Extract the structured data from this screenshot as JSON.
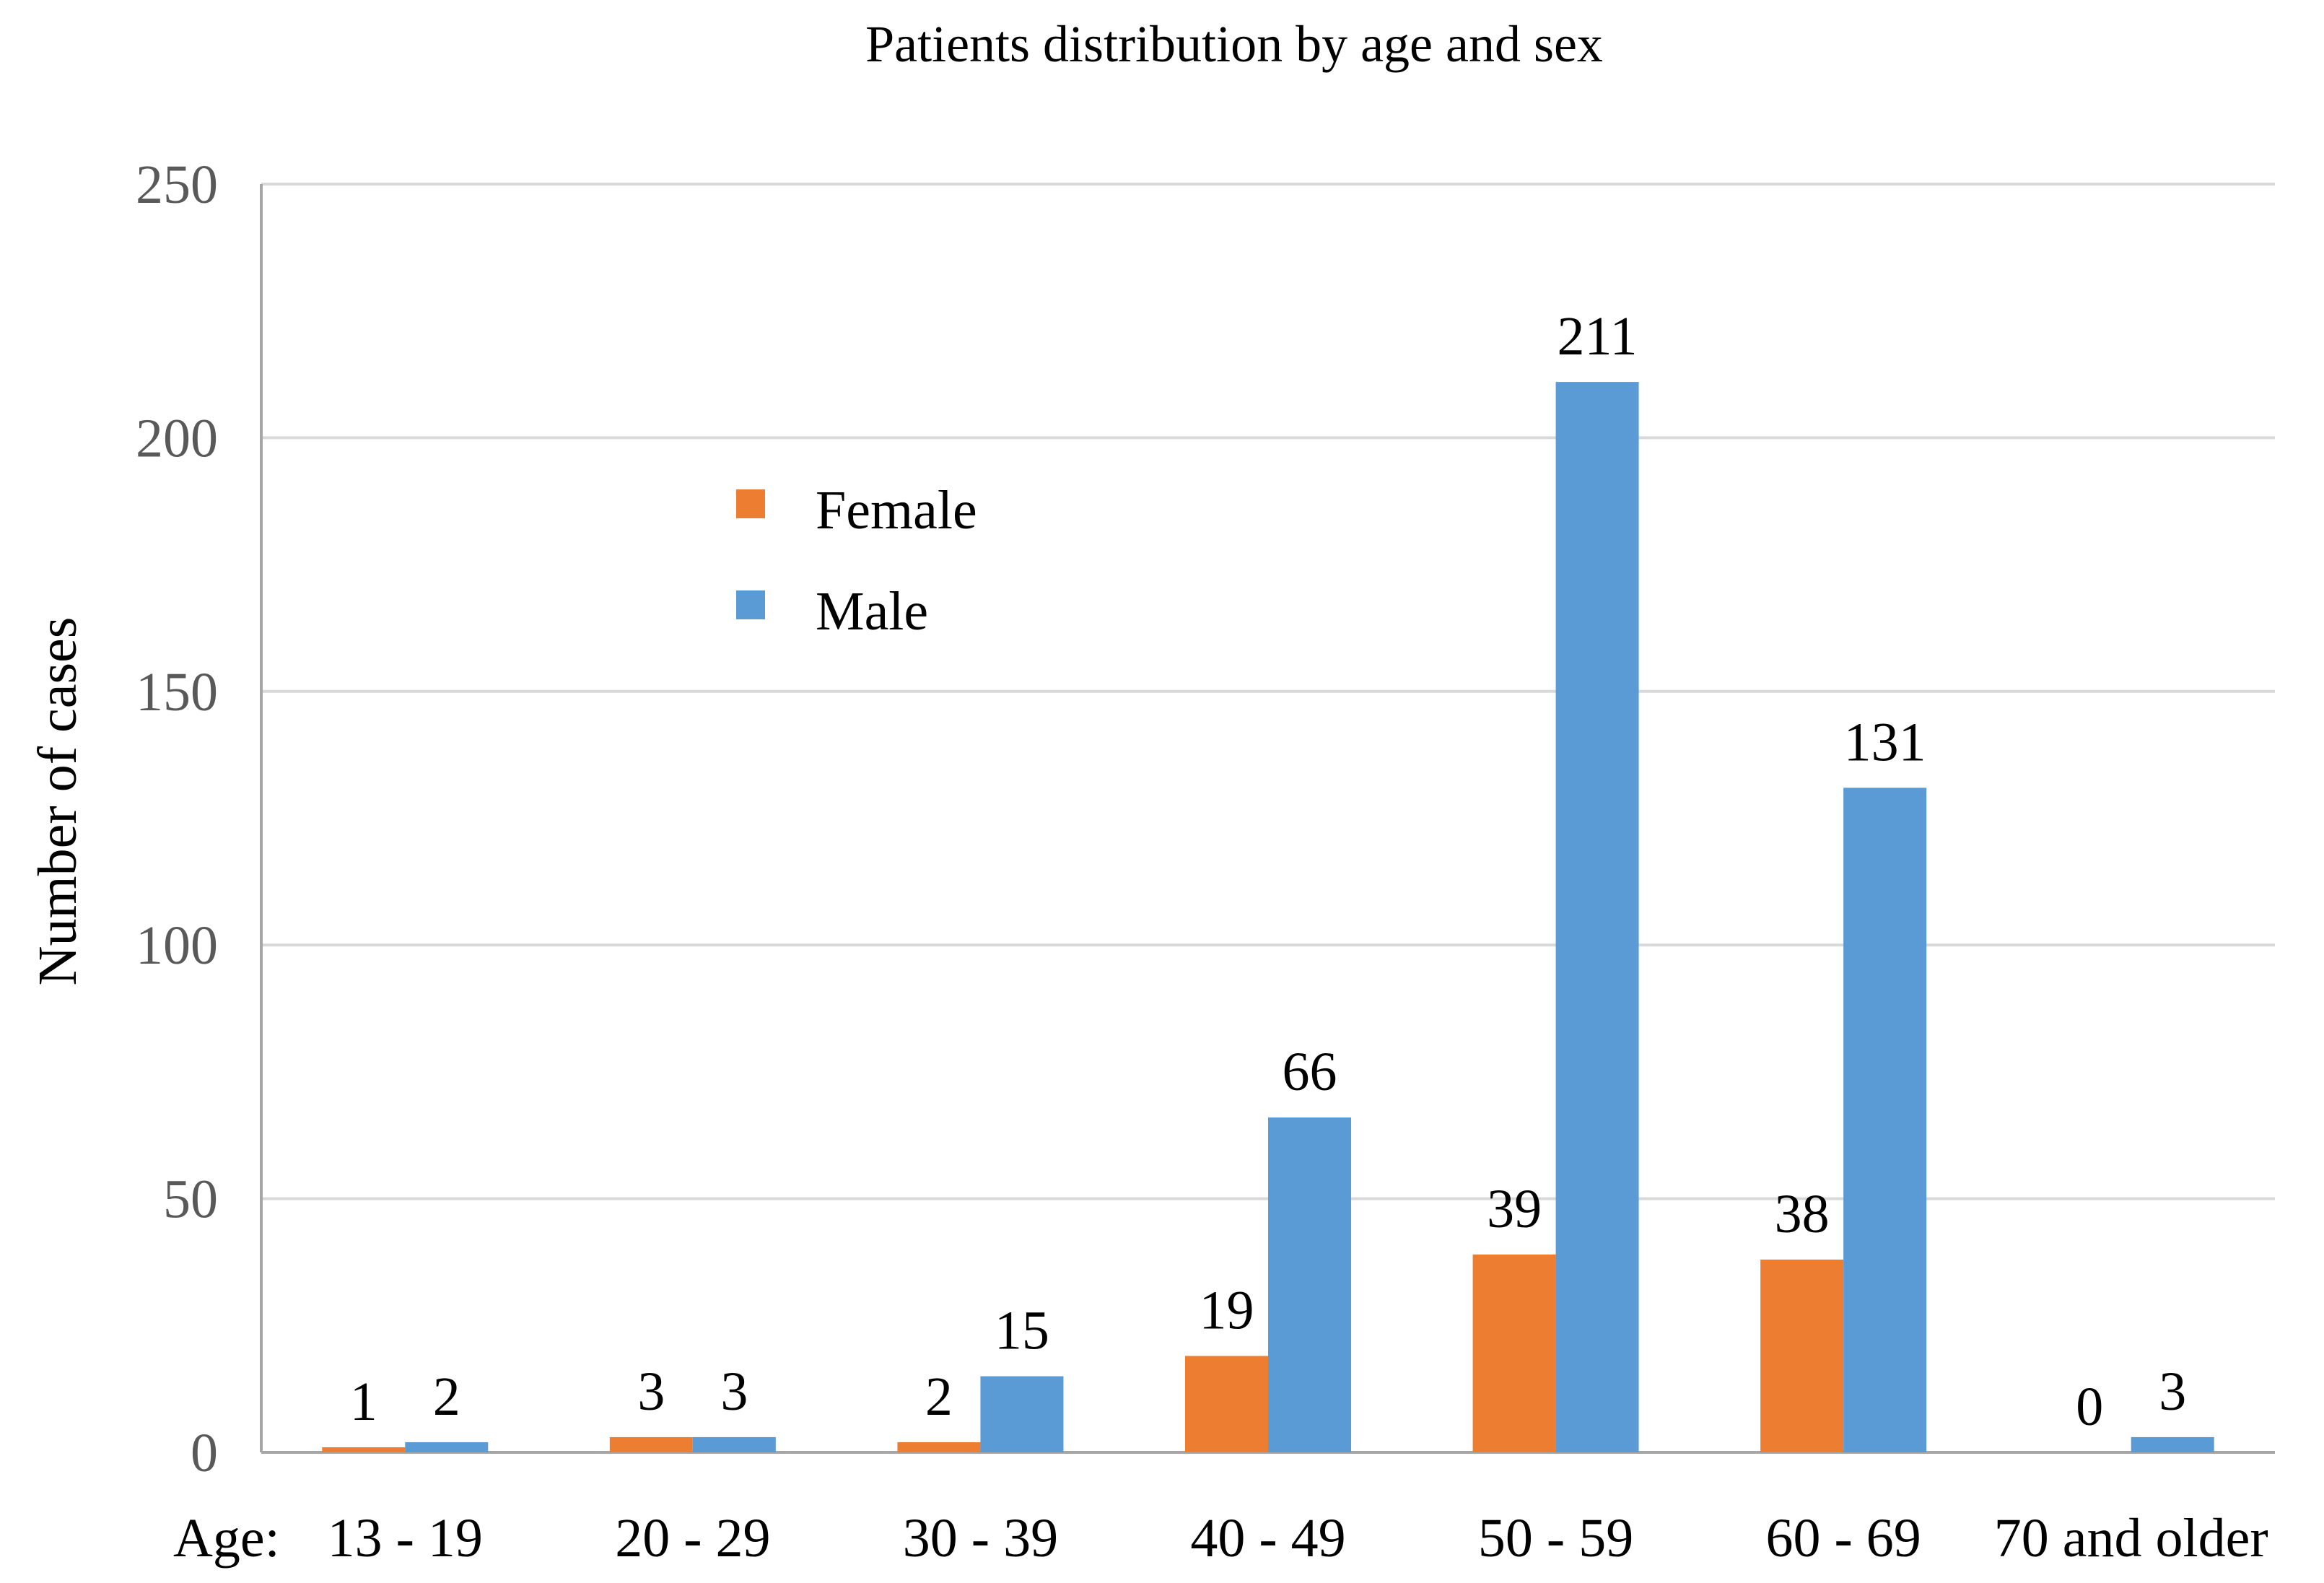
{
  "chart_data": {
    "type": "bar",
    "title": "Patients distribution by age and sex",
    "xlabel": "Age:",
    "ylabel": "Number of cases",
    "categories": [
      "13 - 19",
      "20 - 29",
      "30 - 39",
      "40 - 49",
      "50 - 59",
      "60 - 69",
      "70 and older"
    ],
    "series": [
      {
        "name": "Female",
        "color": "#ED7D31",
        "values": [
          1,
          3,
          2,
          19,
          39,
          38,
          0
        ]
      },
      {
        "name": "Male",
        "color": "#5B9BD5",
        "values": [
          2,
          3,
          15,
          66,
          211,
          131,
          3
        ]
      }
    ],
    "ylim": [
      0,
      250
    ],
    "yticks": [
      0,
      50,
      100,
      150,
      200,
      250
    ],
    "grid": true,
    "legend_position": "upper-left-inside"
  }
}
